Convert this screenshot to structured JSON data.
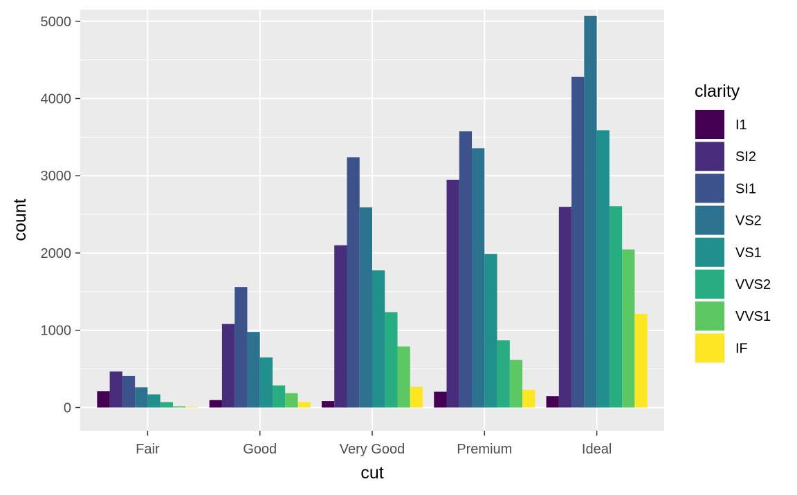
{
  "chart_data": {
    "type": "bar",
    "title": "",
    "xlabel": "cut",
    "ylabel": "count",
    "ylim": [
      -300,
      5150
    ],
    "yticks": [
      0,
      1000,
      2000,
      3000,
      4000,
      5000
    ],
    "ytick_labels": [
      "0",
      "1000",
      "2000",
      "3000",
      "4000",
      "5000"
    ],
    "grid": true,
    "legend": {
      "title": "clarity",
      "position": "right"
    },
    "categories": [
      "Fair",
      "Good",
      "Very Good",
      "Premium",
      "Ideal"
    ],
    "series": [
      {
        "name": "I1",
        "color": "#440154",
        "values": [
          210,
          96,
          84,
          205,
          146
        ]
      },
      {
        "name": "SI2",
        "color": "#472D7B",
        "values": [
          466,
          1081,
          2100,
          2949,
          2598
        ]
      },
      {
        "name": "SI1",
        "color": "#3B528B",
        "values": [
          408,
          1560,
          3240,
          3575,
          4282
        ]
      },
      {
        "name": "VS2",
        "color": "#2C728E",
        "values": [
          261,
          978,
          2591,
          3357,
          5071
        ]
      },
      {
        "name": "VS1",
        "color": "#21908C",
        "values": [
          170,
          648,
          1775,
          1989,
          3589
        ]
      },
      {
        "name": "VVS2",
        "color": "#27AD81",
        "values": [
          69,
          286,
          1235,
          870,
          2606
        ]
      },
      {
        "name": "VVS1",
        "color": "#5DC863",
        "values": [
          17,
          186,
          789,
          616,
          2047
        ]
      },
      {
        "name": "IF",
        "color": "#FDE725",
        "values": [
          9,
          71,
          268,
          230,
          1212
        ]
      }
    ]
  },
  "colors": {
    "panel_background": "#EBEBEB",
    "grid_major": "#FFFFFF",
    "tick_label": "#4D4D4D"
  }
}
